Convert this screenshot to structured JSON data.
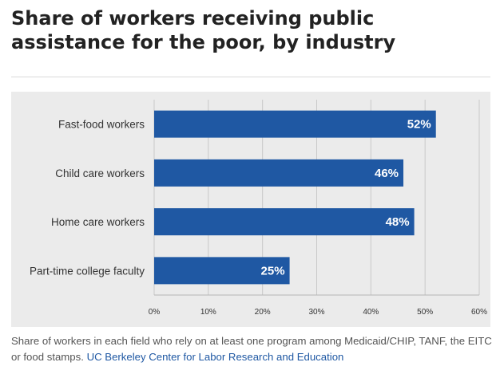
{
  "title": "Share of workers receiving public assistance for the poor, by industry",
  "caption": {
    "text": "Share of workers in each field who rely on at least one program among Medicaid/CHIP, TANF, the EITC or food stamps.",
    "source": "UC Berkeley Center for Labor Research and Education"
  },
  "colors": {
    "bar": "#1f58a3",
    "grid": "#c9c9c9",
    "label": "#333333"
  },
  "chart_data": {
    "type": "bar",
    "orientation": "horizontal",
    "categories": [
      "Fast-food workers",
      "Child care workers",
      "Home care workers",
      "Part-time college faculty"
    ],
    "values": [
      52,
      46,
      48,
      25
    ],
    "value_labels": [
      "52%",
      "46%",
      "48%",
      "25%"
    ],
    "xlim": [
      0,
      60
    ],
    "xticks": [
      0,
      10,
      20,
      30,
      40,
      50,
      60
    ],
    "xtick_labels": [
      "0%",
      "10%",
      "20%",
      "30%",
      "40%",
      "50%",
      "60%"
    ],
    "title": "Share of workers receiving public assistance for the poor, by industry",
    "xlabel": "",
    "ylabel": "",
    "grid": true
  }
}
